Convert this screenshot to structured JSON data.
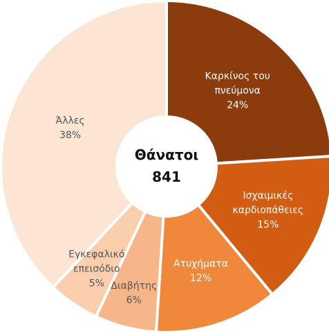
{
  "chart_data": {
    "type": "donut",
    "title": "Θάνατοι",
    "total": 841,
    "categories": [
      "Καρκίνος του πνεύμονα",
      "Ισχαιμικές καρδιοπάθειες",
      "Ατυχήματα",
      "Διαβήτης",
      "Εγκεφαλικό επεισόδιο",
      "Άλλες"
    ],
    "values": [
      24,
      15,
      12,
      6,
      5,
      38
    ],
    "value_labels": [
      "24%",
      "15%",
      "12%",
      "6%",
      "5%",
      "38%"
    ],
    "colors": [
      "#8c3b0c",
      "#d25d12",
      "#f0883c",
      "#f6b68a",
      "#fbceae",
      "#fde5d4"
    ]
  }
}
